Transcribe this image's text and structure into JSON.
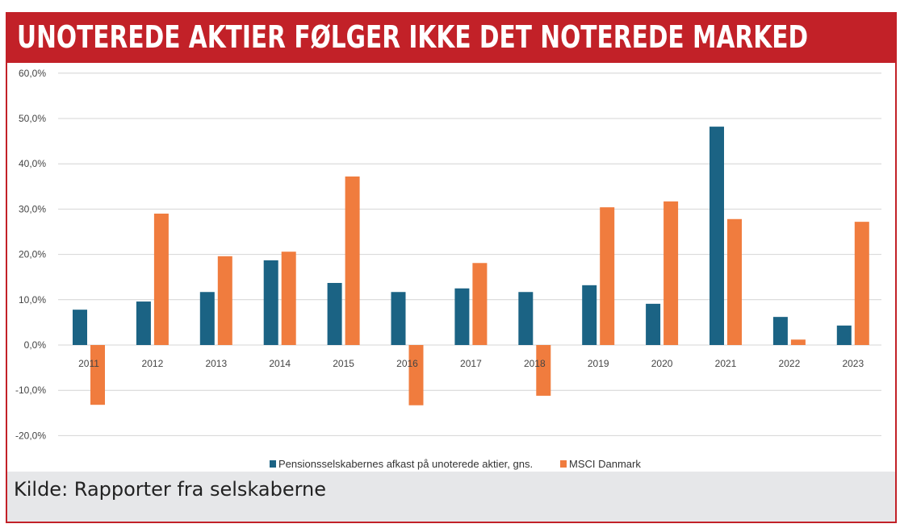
{
  "header": {
    "title": "UNOTEREDE AKTIER FØLGER IKKE DET NOTEREDE MARKED"
  },
  "footer": {
    "source": "Kilde: Rapporter fra selskaberne"
  },
  "chart_data": {
    "type": "bar",
    "title": "UNOTEREDE AKTIER FØLGER IKKE DET NOTEREDE MARKED",
    "categories": [
      "2011",
      "2012",
      "2013",
      "2014",
      "2015",
      "2016",
      "2017",
      "2018",
      "2019",
      "2020",
      "2021",
      "2022",
      "2023"
    ],
    "series": [
      {
        "name": "Pensionsselskabernes afkast på unoterede aktier, gns.",
        "color": "#1b6384",
        "values": [
          7.8,
          9.6,
          11.7,
          18.7,
          13.7,
          11.7,
          12.5,
          11.7,
          13.2,
          9.1,
          48.2,
          6.2,
          4.3
        ]
      },
      {
        "name": "MSCI Danmark",
        "color": "#f07c3e",
        "values": [
          -13.2,
          29.0,
          19.6,
          20.6,
          37.2,
          -13.3,
          18.1,
          -11.2,
          30.4,
          31.7,
          27.8,
          1.2,
          27.2
        ]
      }
    ],
    "ylim": [
      -20,
      60
    ],
    "yticks": [
      "-20,0%",
      "-10,0%",
      "0,0%",
      "10,0%",
      "20,0%",
      "30,0%",
      "40,0%",
      "50,0%",
      "60,0%"
    ],
    "ytick_values": [
      -20,
      -10,
      0,
      10,
      20,
      30,
      40,
      50,
      60
    ],
    "grid": true,
    "legend": "bottom"
  }
}
